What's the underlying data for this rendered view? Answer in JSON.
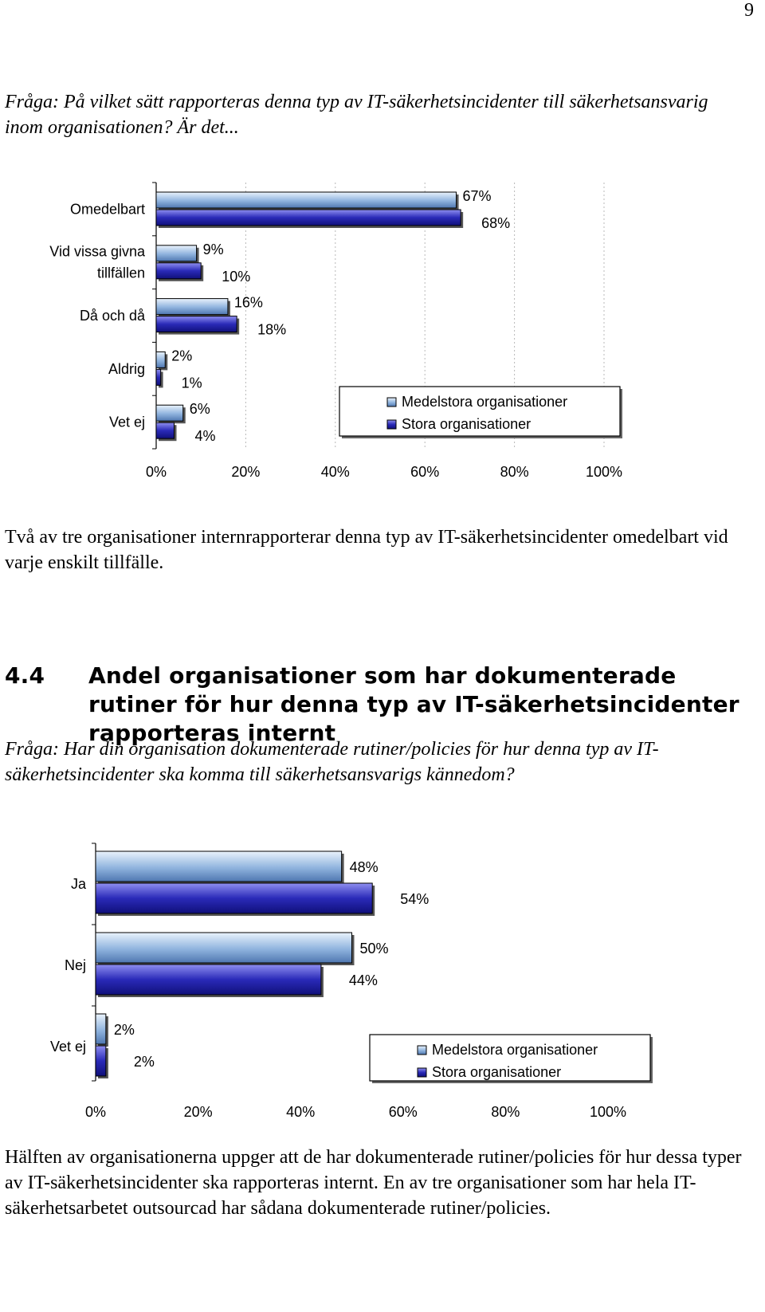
{
  "page_number": "9",
  "question1": "Fråga: På vilket sätt rapporteras denna typ av IT-säkerhetsincidenter till säkerhetsansvarig inom organisationen? Är det...",
  "paragraph1": "Två av tre organisationer internrapporterar denna typ av IT-säkerhetsincidenter omedelbart vid varje enskilt tillfälle.",
  "section": {
    "number": "4.4",
    "title": "Andel organisationer som har dokumenterade rutiner för hur denna typ av IT-säkerhetsincidenter rapporteras internt"
  },
  "question2": "Fråga: Har din organisation dokumenterade rutiner/policies för hur denna typ av IT-säkerhetsincidenter ska komma till säkerhetsansvarigs kännedom?",
  "paragraph2": "Hälften av organisationerna uppger att de har dokumenterade rutiner/policies för hur dessa typer av IT-säkerhetsincidenter ska rapporteras internt. En av tre organisationer som har hela IT-säkerhetsarbetet outsourcad har sådana dokumenterade rutiner/policies.",
  "colors": {
    "medium": "#8fb3de",
    "large": "#2a2ab8"
  },
  "chart_data": [
    {
      "type": "bar",
      "orientation": "horizontal",
      "categories": [
        "Omedelbart",
        "Vid vissa givna tillfällen",
        "Då och då",
        "Aldrig",
        "Vet ej"
      ],
      "series": [
        {
          "name": "Medelstora organisationer",
          "values": [
            67,
            9,
            16,
            2,
            6
          ],
          "labels": [
            "67%",
            "9%",
            "16%",
            "2%",
            "6%"
          ]
        },
        {
          "name": "Stora organisationer",
          "values": [
            68,
            10,
            18,
            1,
            4
          ],
          "labels": [
            "68%",
            "10%",
            "18%",
            "1%",
            "4%"
          ]
        }
      ],
      "xlim": [
        0,
        100
      ],
      "xticks": [
        "0%",
        "20%",
        "40%",
        "60%",
        "80%",
        "100%"
      ],
      "grid": true,
      "legend": "lower-right"
    },
    {
      "type": "bar",
      "orientation": "horizontal",
      "categories": [
        "Ja",
        "Nej",
        "Vet ej"
      ],
      "series": [
        {
          "name": "Medelstora organisationer",
          "values": [
            48,
            50,
            2
          ],
          "labels": [
            "48%",
            "50%",
            "2%"
          ]
        },
        {
          "name": "Stora organisationer",
          "values": [
            54,
            44,
            2
          ],
          "labels": [
            "54%",
            "44%",
            "2%"
          ]
        }
      ],
      "xlim": [
        0,
        100
      ],
      "xticks": [
        "0%",
        "20%",
        "40%",
        "60%",
        "80%",
        "100%"
      ],
      "grid": false,
      "legend": "lower-right"
    }
  ]
}
